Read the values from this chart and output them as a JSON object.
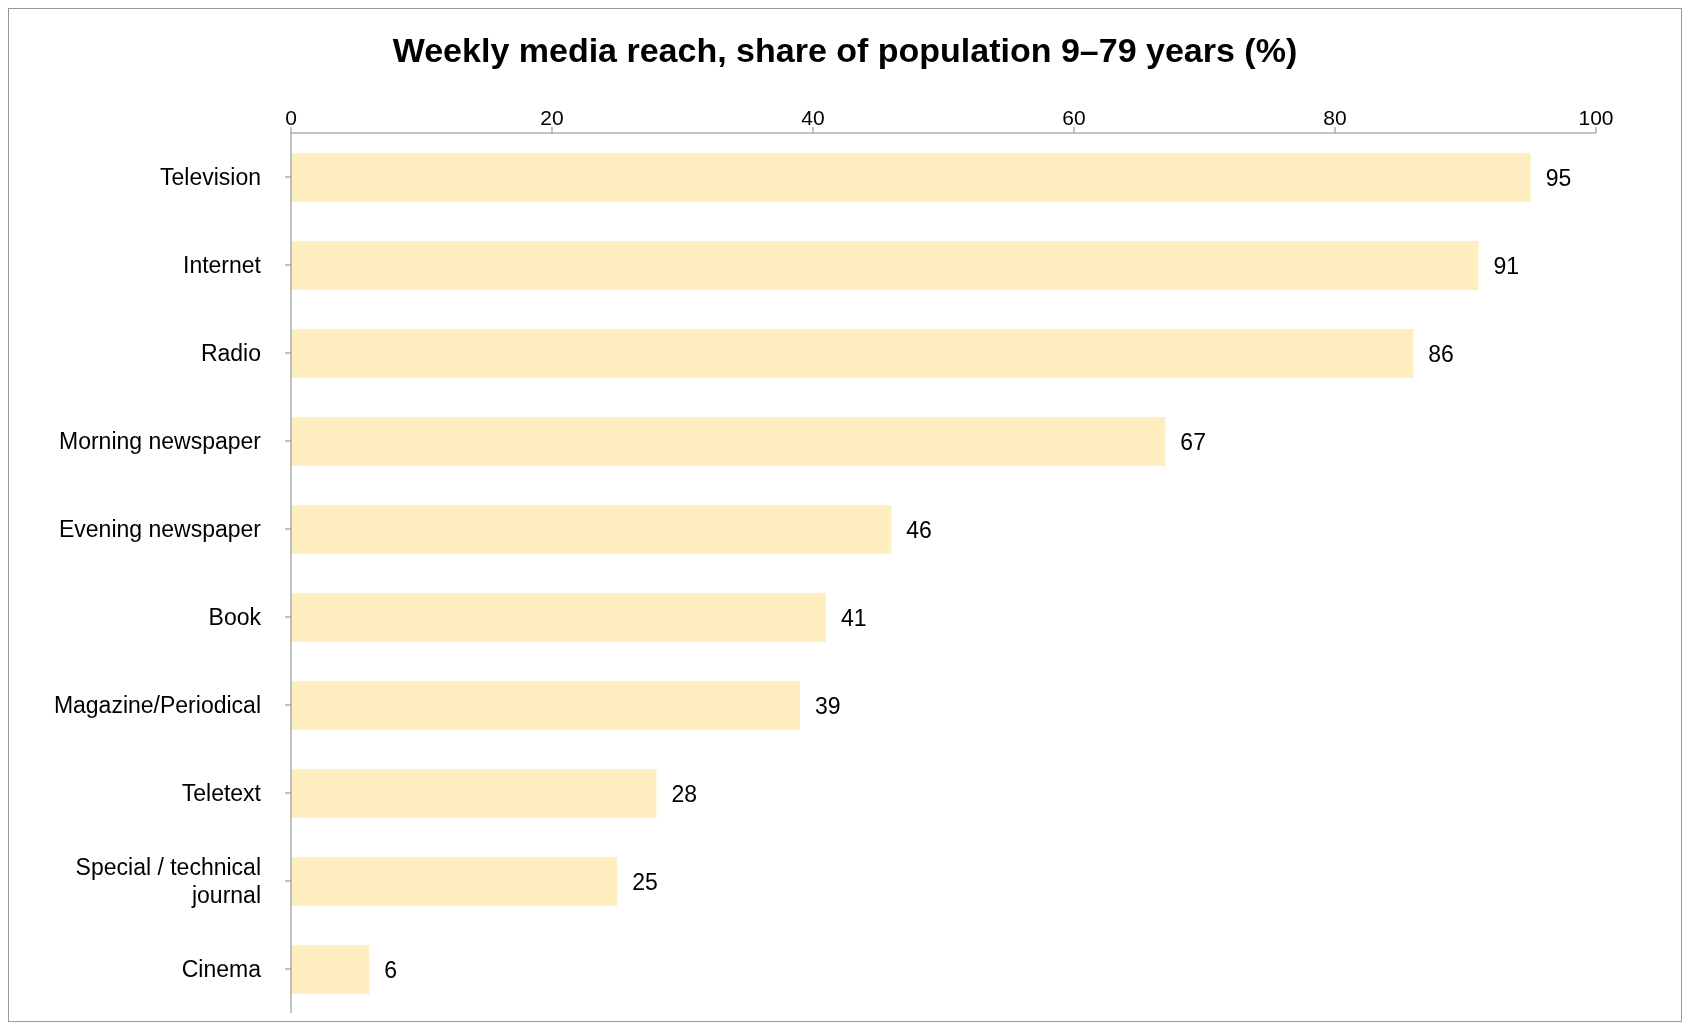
{
  "chart_data": {
    "type": "bar",
    "orientation": "horizontal",
    "title": "Weekly media reach, share of population 9–79 years (%)",
    "categories": [
      "Television",
      "Internet",
      "Radio",
      "Morning newspaper",
      "Evening newspaper",
      "Book",
      "Magazine/Periodical",
      "Teletext",
      "Special / technical journal",
      "Cinema"
    ],
    "values": [
      95,
      91,
      86,
      67,
      46,
      41,
      39,
      28,
      25,
      6
    ],
    "color": "#ffeec0",
    "xlim": [
      0,
      100
    ],
    "xticks": [
      0,
      20,
      40,
      60,
      80,
      100
    ],
    "data_labels": true
  }
}
